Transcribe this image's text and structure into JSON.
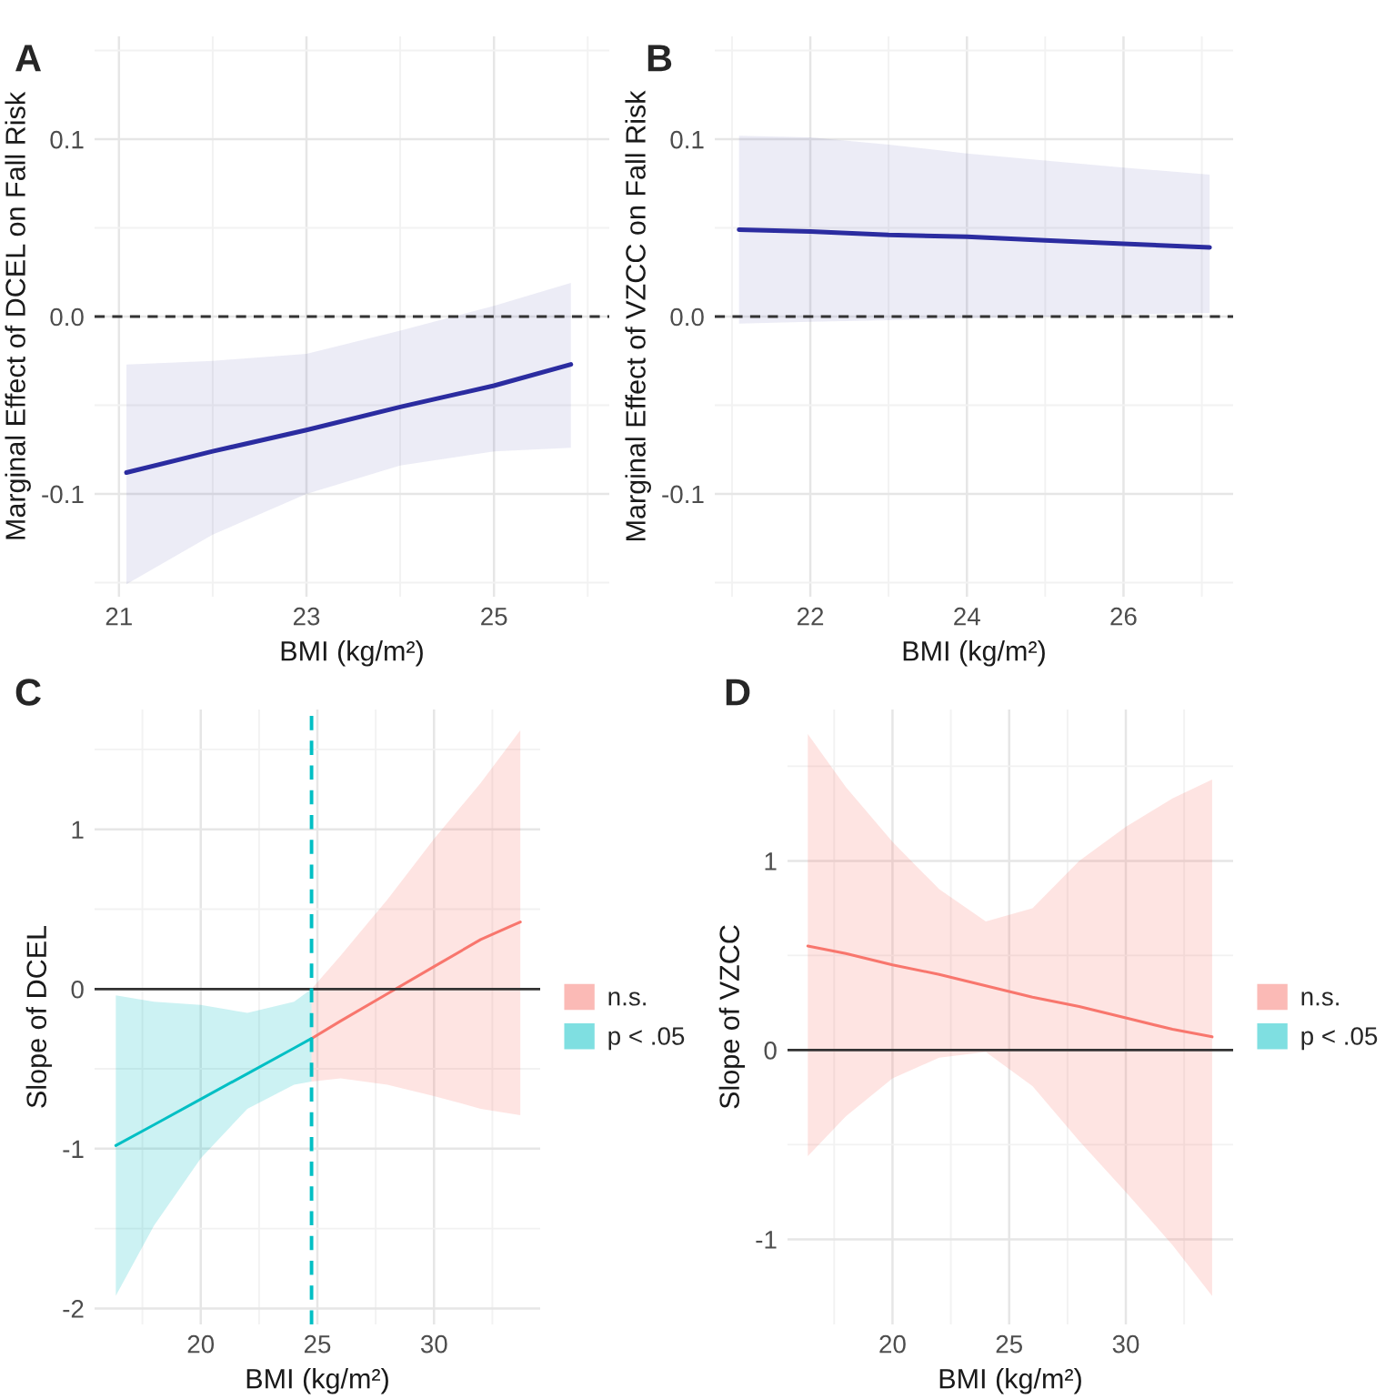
{
  "chart_data": [
    {
      "type": "line",
      "title": "A",
      "xlabel": "BMI (kg/m²)",
      "ylabel": "Marginal Effect of DCEL on Fall Risk",
      "xlim": [
        20.74,
        26.23
      ],
      "xticks": [
        21,
        23,
        25
      ],
      "ylim": [
        -0.158,
        0.158
      ],
      "yticks": [
        {
          "value": -0.1,
          "label": "-0.1"
        },
        {
          "value": 0,
          "label": "0.0"
        },
        {
          "value": 0.1,
          "label": "0.1"
        }
      ],
      "grid": true,
      "legend": false,
      "series": [
        {
          "color": "#2b2ca0",
          "x": [
            21.08,
            22,
            23,
            24,
            25,
            25.82
          ],
          "values": [
            -0.088,
            -0.076,
            -0.064,
            -0.051,
            -0.039,
            -0.027
          ],
          "lower": [
            -0.151,
            -0.123,
            -0.1,
            -0.084,
            -0.076,
            -0.074
          ],
          "upper": [
            -0.027,
            -0.025,
            -0.021,
            -0.008,
            0.006,
            0.019
          ]
        }
      ],
      "ref_lines": [
        {
          "axis": "y",
          "value": 0,
          "color": "#333333",
          "line_style": "dashed"
        }
      ]
    },
    {
      "type": "line",
      "title": "B",
      "xlabel": "BMI (kg/m²)",
      "ylabel": "Marginal Effect of VZCC on Fall Risk",
      "xlim": [
        20.78,
        27.4
      ],
      "xticks": [
        22,
        24,
        26
      ],
      "ylim": [
        -0.158,
        0.158
      ],
      "yticks": [
        {
          "value": -0.1,
          "label": "-0.1"
        },
        {
          "value": 0,
          "label": "0.0"
        },
        {
          "value": 0.1,
          "label": "0.1"
        }
      ],
      "grid": true,
      "legend": false,
      "series": [
        {
          "color": "#2b2ca0",
          "x": [
            21.09,
            22,
            23,
            24,
            25,
            26,
            27.1
          ],
          "values": [
            0.049,
            0.048,
            0.046,
            0.045,
            0.043,
            0.041,
            0.039
          ],
          "lower": [
            -0.004,
            -0.003,
            -0.002,
            -0.001,
            0,
            0.001,
            0.002
          ],
          "upper": [
            0.102,
            0.101,
            0.097,
            0.092,
            0.088,
            0.084,
            0.08
          ]
        }
      ],
      "ref_lines": [
        {
          "axis": "y",
          "value": 0,
          "color": "#333333",
          "line_style": "dashed"
        }
      ]
    },
    {
      "type": "line",
      "title": "C",
      "xlabel": "BMI (kg/m²)",
      "ylabel": "Slope of DCEL",
      "xlim": [
        15.45,
        34.55
      ],
      "xticks": [
        20,
        25,
        30
      ],
      "ylim": [
        -2.1,
        1.75
      ],
      "yticks": [
        -2,
        -1,
        0,
        1
      ],
      "grid": true,
      "legend": "right",
      "series": [
        {
          "name": "n.s.",
          "color": "#f8766d",
          "x": [
            24.75,
            26,
            28,
            30,
            32,
            33.7
          ],
          "values": [
            -0.31,
            -0.2,
            -0.03,
            0.14,
            0.31,
            0.42
          ],
          "lower": [
            -0.58,
            -0.56,
            -0.6,
            -0.67,
            -0.75,
            -0.79
          ],
          "upper": [
            0.0,
            0.21,
            0.56,
            0.94,
            1.29,
            1.62
          ]
        },
        {
          "name": "p < .05",
          "color": "#00bfc4",
          "x": [
            16.36,
            18,
            20,
            22,
            24,
            24.75
          ],
          "values": [
            -0.98,
            -0.85,
            -0.69,
            -0.53,
            -0.37,
            -0.31
          ],
          "lower": [
            -1.92,
            -1.48,
            -1.06,
            -0.75,
            -0.6,
            -0.58
          ],
          "upper": [
            -0.04,
            -0.08,
            -0.1,
            -0.15,
            -0.08,
            0.0
          ]
        }
      ],
      "ref_lines": [
        {
          "axis": "y",
          "value": 0,
          "color": "#333333",
          "line_style": "solid"
        },
        {
          "axis": "x",
          "value": 24.75,
          "color": "#00bfc4",
          "line_style": "dashed"
        }
      ]
    },
    {
      "type": "line",
      "title": "D",
      "xlabel": "BMI (kg/m²)",
      "ylabel": "Slope of VZCC",
      "xlim": [
        15.5,
        34.6
      ],
      "xticks": [
        20,
        25,
        30
      ],
      "ylim": [
        -1.45,
        1.8
      ],
      "yticks": [
        -1,
        0,
        1
      ],
      "grid": true,
      "legend": "right",
      "series": [
        {
          "name": "n.s.",
          "color": "#f8766d",
          "x": [
            16.37,
            18,
            20,
            22,
            24,
            26,
            28,
            30,
            32,
            33.7
          ],
          "values": [
            0.55,
            0.51,
            0.45,
            0.4,
            0.34,
            0.28,
            0.23,
            0.17,
            0.11,
            0.07
          ],
          "lower": [
            -0.56,
            -0.35,
            -0.15,
            -0.04,
            -0.01,
            -0.19,
            -0.48,
            -0.75,
            -1.03,
            -1.3
          ],
          "upper": [
            1.67,
            1.39,
            1.1,
            0.85,
            0.68,
            0.75,
            1.0,
            1.18,
            1.33,
            1.43
          ]
        },
        {
          "name": "p < .05",
          "color": "#00bfc4"
        }
      ],
      "ref_lines": [
        {
          "axis": "y",
          "value": 0,
          "color": "#333333",
          "line_style": "solid"
        }
      ]
    }
  ]
}
